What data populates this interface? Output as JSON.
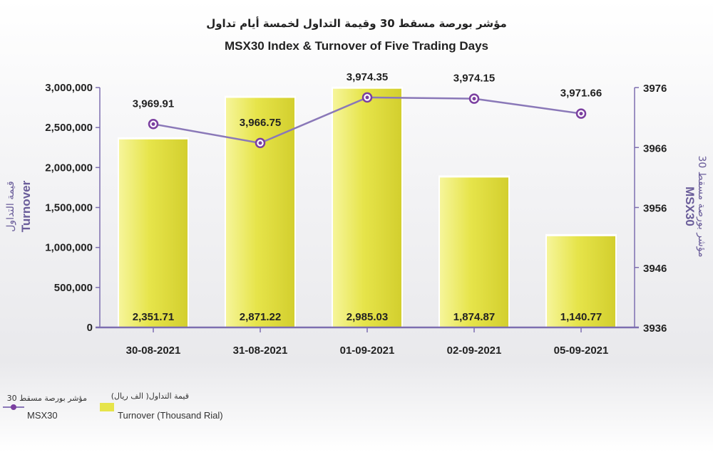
{
  "title_ar": "مؤشر بورصة مسقط 30 وقيمة التداول لخمسة أيام تداول",
  "title_en": "MSX30 Index & Turnover of Five Trading Days",
  "left_axis": {
    "title_ar": "قيمة التداول",
    "title_en": "Turnover",
    "ticks": [
      "3,000,000",
      "2,500,000",
      "2,000,000",
      "1,500,000",
      "1,000,000",
      "500,000",
      "0"
    ]
  },
  "right_axis": {
    "title_ar": "مؤشر بورصة مسقط 30",
    "title_en": "MSX30",
    "ticks": [
      "3976",
      "3966",
      "3956",
      "3946",
      "3936"
    ]
  },
  "legend": {
    "index_ar": "مؤشر بورصة مسقط 30",
    "index_en": "MSX30",
    "turnover_ar": "قيمة التداول( الف ريال)",
    "turnover_en": "Turnover (Thousand Rial)"
  },
  "colors": {
    "bar": "#e6e44a",
    "bar_light": "#f6f59a",
    "line": "#8a78b8",
    "marker": "#7b3fa0",
    "axis": "#7d6eb0"
  },
  "chart_data": {
    "type": "bar",
    "categories": [
      "30-08-2021",
      "31-08-2021",
      "01-09-2021",
      "02-09-2021",
      "05-09-2021"
    ],
    "series": [
      {
        "name": "Turnover (Thousand Rial)",
        "type": "bar",
        "axis": "left",
        "values": [
          2351.71,
          2871.22,
          2985.03,
          1874.87,
          1140.77
        ],
        "plotted_values": [
          2351710,
          2871220,
          2985030,
          1874870,
          1140770
        ],
        "labels": [
          "2,351.71",
          "2,871.22",
          "2,985.03",
          "1,874.87",
          "1,140.77"
        ]
      },
      {
        "name": "MSX30",
        "type": "line",
        "axis": "right",
        "values": [
          3969.91,
          3966.75,
          3974.35,
          3974.15,
          3971.66
        ],
        "labels": [
          "3,969.91",
          "3,966.75",
          "3,974.35",
          "3,974.15",
          "3,971.66"
        ]
      }
    ],
    "ylim_left": [
      0,
      3000000
    ],
    "ylim_right": [
      3936,
      3976
    ],
    "grid": false,
    "legend_position": "bottom-left"
  }
}
